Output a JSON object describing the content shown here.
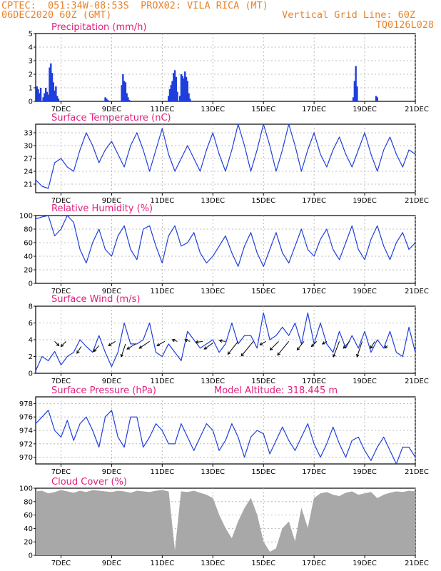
{
  "header": {
    "line1_left": "CPTEC:  051:34W-08:53S  PROX02: VILA RICA (MT)",
    "line2_left": "06DEC2020 60Z (GMT)",
    "line2_right": "Vertical Grid Line: 60Z",
    "line3_right": "TQ0126L028"
  },
  "colors": {
    "header": "#e8832a",
    "title": "#e0207d",
    "line": "#1f3fdc",
    "bar": "#1f3fdc",
    "cloud": "#a8a8a8",
    "arrow": "#000000"
  },
  "x_ticks": [
    "7DEC",
    "9DEC",
    "11DEC",
    "13DEC",
    "15DEC",
    "17DEC",
    "19DEC",
    "21DEC"
  ],
  "chart_data": [
    {
      "type": "bar",
      "title": "Precipitation (mm/h)",
      "ylim": [
        0,
        5
      ],
      "yticks": [
        0,
        1,
        2,
        3,
        4,
        5
      ],
      "grid": true,
      "x": [
        0.05,
        0.1,
        0.15,
        0.2,
        0.3,
        0.35,
        0.4,
        0.45,
        0.5,
        0.55,
        0.6,
        0.65,
        0.7,
        0.75,
        0.8,
        0.85,
        0.9,
        2.75,
        2.8,
        2.85,
        3.4,
        3.45,
        3.5,
        3.55,
        3.6,
        3.65,
        3.7,
        5.25,
        5.3,
        5.35,
        5.4,
        5.45,
        5.5,
        5.55,
        5.6,
        5.7,
        5.75,
        5.8,
        5.85,
        5.9,
        5.95,
        6.0,
        6.05,
        6.1,
        12.55,
        12.6,
        12.65,
        12.7,
        13.45,
        13.5
      ],
      "values": [
        1.1,
        0.9,
        0.6,
        1.0,
        0.3,
        0.6,
        1.0,
        0.7,
        0.5,
        2.5,
        2.8,
        2.1,
        1.4,
        0.8,
        1.1,
        0.4,
        0.2,
        0.3,
        0.2,
        0.1,
        1.2,
        2.0,
        1.5,
        1.4,
        0.6,
        0.3,
        0.1,
        0.4,
        0.9,
        1.2,
        1.5,
        2.1,
        2.3,
        1.8,
        0.7,
        0.4,
        2.0,
        1.9,
        1.7,
        2.2,
        1.8,
        1.5,
        0.6,
        0.2,
        0.3,
        1.5,
        2.6,
        1.1,
        0.4,
        0.3
      ]
    },
    {
      "type": "line",
      "title": "Surface Temperature (nC)",
      "ylim": [
        19,
        35
      ],
      "yticks": [
        21,
        24,
        27,
        30,
        33
      ],
      "grid": true,
      "x": [
        0,
        0.25,
        0.5,
        0.75,
        1,
        1.25,
        1.5,
        1.75,
        2,
        2.25,
        2.5,
        2.75,
        3,
        3.25,
        3.5,
        3.75,
        4,
        4.25,
        4.5,
        4.75,
        5,
        5.25,
        5.5,
        5.75,
        6,
        6.25,
        6.5,
        6.75,
        7,
        7.25,
        7.5,
        7.75,
        8,
        8.25,
        8.5,
        8.75,
        9,
        9.25,
        9.5,
        9.75,
        10,
        10.25,
        10.5,
        10.75,
        11,
        11.25,
        11.5,
        11.75,
        12,
        12.25,
        12.5,
        12.75,
        13,
        13.25,
        13.5,
        13.75,
        14,
        14.25,
        14.5,
        14.75,
        15
      ],
      "values": [
        22,
        20.5,
        20,
        26,
        27,
        25,
        24,
        29,
        33,
        30,
        26,
        29,
        31,
        28,
        25,
        30,
        33,
        29,
        24,
        29,
        34,
        28,
        24,
        27,
        30,
        27,
        24,
        29,
        33,
        28,
        24,
        29,
        35,
        30,
        24,
        29,
        35,
        30,
        24,
        29,
        35,
        30,
        24,
        29,
        33,
        28,
        25,
        29,
        32,
        28,
        25,
        29,
        33,
        28,
        24,
        29,
        32,
        28,
        25,
        29,
        28
      ]
    },
    {
      "type": "line",
      "title": "Relative Humidity (%)",
      "ylim": [
        0,
        100
      ],
      "yticks": [
        0,
        20,
        40,
        60,
        80,
        100
      ],
      "grid": true,
      "x": [
        0,
        0.25,
        0.5,
        0.75,
        1,
        1.25,
        1.5,
        1.75,
        2,
        2.25,
        2.5,
        2.75,
        3,
        3.25,
        3.5,
        3.75,
        4,
        4.25,
        4.5,
        4.75,
        5,
        5.25,
        5.5,
        5.75,
        6,
        6.25,
        6.5,
        6.75,
        7,
        7.25,
        7.5,
        7.75,
        8,
        8.25,
        8.5,
        8.75,
        9,
        9.25,
        9.5,
        9.75,
        10,
        10.25,
        10.5,
        10.75,
        11,
        11.25,
        11.5,
        11.75,
        12,
        12.25,
        12.5,
        12.75,
        13,
        13.25,
        13.5,
        13.75,
        14,
        14.25,
        14.5,
        14.75,
        15
      ],
      "values": [
        95,
        98,
        100,
        70,
        80,
        100,
        90,
        50,
        30,
        60,
        80,
        50,
        40,
        70,
        85,
        50,
        35,
        80,
        85,
        55,
        30,
        70,
        85,
        55,
        60,
        75,
        45,
        30,
        40,
        55,
        70,
        45,
        25,
        55,
        75,
        45,
        25,
        50,
        75,
        45,
        30,
        55,
        80,
        50,
        40,
        65,
        80,
        50,
        35,
        60,
        85,
        50,
        35,
        65,
        85,
        55,
        35,
        60,
        75,
        50,
        60
      ]
    },
    {
      "type": "line",
      "title": "Surface Wind (m/s)",
      "ylim": [
        0,
        8
      ],
      "yticks": [
        0,
        2,
        4,
        6,
        8
      ],
      "grid": true,
      "x": [
        0,
        0.25,
        0.5,
        0.75,
        1,
        1.25,
        1.5,
        1.75,
        2,
        2.25,
        2.5,
        2.75,
        3,
        3.25,
        3.5,
        3.75,
        4,
        4.25,
        4.5,
        4.75,
        5,
        5.25,
        5.5,
        5.75,
        6,
        6.25,
        6.5,
        6.75,
        7,
        7.25,
        7.5,
        7.75,
        8,
        8.25,
        8.5,
        8.75,
        9,
        9.25,
        9.5,
        9.75,
        10,
        10.25,
        10.5,
        10.75,
        11,
        11.25,
        11.5,
        11.75,
        12,
        12.25,
        12.5,
        12.75,
        13,
        13.25,
        13.5,
        13.75,
        14,
        14.25,
        14.5,
        14.75,
        15
      ],
      "values": [
        0.3,
        2.0,
        1.5,
        2.6,
        1.0,
        2.0,
        2.5,
        4.0,
        3.2,
        2.5,
        4.5,
        2.5,
        0.8,
        2.5,
        6.0,
        3.5,
        3.5,
        4.0,
        6.0,
        2.5,
        2.0,
        3.5,
        2.5,
        1.5,
        5.0,
        4.0,
        3.0,
        3.5,
        4.0,
        2.5,
        3.5,
        6.0,
        3.5,
        4.5,
        4.5,
        3.0,
        7.2,
        4.0,
        4.5,
        5.5,
        4.5,
        6.0,
        3.5,
        7.2,
        3.5,
        6.0,
        3.5,
        2.5,
        5.0,
        3.0,
        4.5,
        3.0,
        5.0,
        2.5,
        4.0,
        3.0,
        5.0,
        2.5,
        2.0,
        5.5,
        2.5
      ],
      "arrows": [
        {
          "x": 0.75,
          "y": 3.8,
          "u": 0.5,
          "v": -0.5
        },
        {
          "x": 1.2,
          "y": 3.8,
          "u": -0.6,
          "v": -0.6
        },
        {
          "x": 1.8,
          "y": 3.2,
          "u": -0.5,
          "v": -0.8
        },
        {
          "x": 2.5,
          "y": 3.3,
          "u": -0.6,
          "v": -0.7
        },
        {
          "x": 3.15,
          "y": 3.8,
          "u": -0.8,
          "v": -0.5
        },
        {
          "x": 3.55,
          "y": 3.5,
          "u": -0.5,
          "v": -1.5
        },
        {
          "x": 3.95,
          "y": 3.5,
          "u": -1.0,
          "v": -0.6
        },
        {
          "x": 4.5,
          "y": 3.8,
          "u": -1.2,
          "v": -0.8
        },
        {
          "x": 5.1,
          "y": 3.8,
          "u": -0.9,
          "v": -0.5
        },
        {
          "x": 5.6,
          "y": 3.8,
          "u": -0.6,
          "v": 0.2
        },
        {
          "x": 6.1,
          "y": 3.8,
          "u": -0.6,
          "v": 0.2
        },
        {
          "x": 6.6,
          "y": 3.8,
          "u": -0.8,
          "v": -0.1
        },
        {
          "x": 7.0,
          "y": 3.6,
          "u": -1.0,
          "v": -0.7
        },
        {
          "x": 7.5,
          "y": 3.8,
          "u": -0.7,
          "v": 0.1
        },
        {
          "x": 8.0,
          "y": 3.8,
          "u": -1.2,
          "v": -1.5
        },
        {
          "x": 8.6,
          "y": 3.8,
          "u": -1.4,
          "v": -1.7
        },
        {
          "x": 9.1,
          "y": 3.8,
          "u": -0.7,
          "v": -0.4
        },
        {
          "x": 9.6,
          "y": 3.8,
          "u": -1.0,
          "v": -1.0
        },
        {
          "x": 10.0,
          "y": 3.8,
          "u": -1.3,
          "v": -1.6
        },
        {
          "x": 10.6,
          "y": 3.8,
          "u": -0.8,
          "v": -1.0
        },
        {
          "x": 11.1,
          "y": 3.8,
          "u": -0.6,
          "v": -0.6
        },
        {
          "x": 11.5,
          "y": 3.8,
          "u": -0.5,
          "v": -0.3
        },
        {
          "x": 12.0,
          "y": 3.8,
          "u": -0.7,
          "v": -1.8
        },
        {
          "x": 12.4,
          "y": 3.8,
          "u": -0.7,
          "v": -0.8
        },
        {
          "x": 12.9,
          "y": 3.8,
          "u": -0.6,
          "v": -1.8
        },
        {
          "x": 13.4,
          "y": 3.8,
          "u": -0.5,
          "v": -0.8
        },
        {
          "x": 13.9,
          "y": 3.3,
          "u": -0.3,
          "v": -0.3
        }
      ]
    },
    {
      "type": "line",
      "title": "Surface Pressure (hPa)",
      "annotation": "Model Altitude: 318.445 m",
      "ylim": [
        969,
        979
      ],
      "yticks": [
        970,
        972,
        974,
        976,
        978
      ],
      "grid": true,
      "x": [
        0,
        0.25,
        0.5,
        0.75,
        1,
        1.25,
        1.5,
        1.75,
        2,
        2.25,
        2.5,
        2.75,
        3,
        3.25,
        3.5,
        3.75,
        4,
        4.25,
        4.5,
        4.75,
        5,
        5.25,
        5.5,
        5.75,
        6,
        6.25,
        6.5,
        6.75,
        7,
        7.25,
        7.5,
        7.75,
        8,
        8.25,
        8.5,
        8.75,
        9,
        9.25,
        9.5,
        9.75,
        10,
        10.25,
        10.5,
        10.75,
        11,
        11.25,
        11.5,
        11.75,
        12,
        12.25,
        12.5,
        12.75,
        13,
        13.25,
        13.5,
        13.75,
        14,
        14.25,
        14.5,
        14.75,
        15
      ],
      "values": [
        975,
        976,
        977,
        974,
        973,
        975.5,
        972.5,
        975,
        976,
        974,
        971.5,
        976,
        977,
        973,
        971.5,
        976,
        976,
        971.5,
        973,
        975,
        974,
        972,
        972,
        975,
        973,
        971,
        973,
        975,
        974,
        971,
        972.5,
        975,
        973,
        970,
        973,
        974,
        973.5,
        970.5,
        972.5,
        974.5,
        972.5,
        971,
        973,
        975,
        972,
        970,
        972,
        974.5,
        972,
        970,
        972.5,
        973,
        971,
        969.5,
        971.5,
        973,
        971,
        969,
        971.5,
        971.5,
        970
      ]
    },
    {
      "type": "area",
      "title": "Cloud Cover (%)",
      "ylim": [
        0,
        100
      ],
      "yticks": [
        0,
        20,
        40,
        60,
        80,
        100
      ],
      "grid": true,
      "x": [
        0,
        0.25,
        0.5,
        0.75,
        1,
        1.25,
        1.5,
        1.75,
        2,
        2.25,
        2.5,
        2.75,
        3,
        3.25,
        3.5,
        3.75,
        4,
        4.25,
        4.5,
        4.75,
        5,
        5.25,
        5.5,
        5.75,
        6,
        6.25,
        6.5,
        6.75,
        7,
        7.25,
        7.5,
        7.75,
        8,
        8.25,
        8.5,
        8.75,
        9,
        9.25,
        9.5,
        9.75,
        10,
        10.25,
        10.5,
        10.75,
        11,
        11.25,
        11.5,
        11.75,
        12,
        12.25,
        12.5,
        12.75,
        13,
        13.25,
        13.5,
        13.75,
        14,
        14.25,
        14.5,
        14.75,
        15
      ],
      "values": [
        95,
        96,
        92,
        94,
        97,
        95,
        93,
        96,
        94,
        97,
        96,
        95,
        94,
        96,
        95,
        93,
        96,
        95,
        94,
        96,
        97,
        95,
        5,
        95,
        94,
        96,
        93,
        90,
        85,
        60,
        40,
        25,
        50,
        70,
        85,
        60,
        20,
        5,
        10,
        40,
        50,
        20,
        70,
        40,
        85,
        92,
        94,
        90,
        88,
        93,
        95,
        90,
        92,
        94,
        85,
        90,
        93,
        95,
        94,
        96,
        95
      ]
    }
  ]
}
